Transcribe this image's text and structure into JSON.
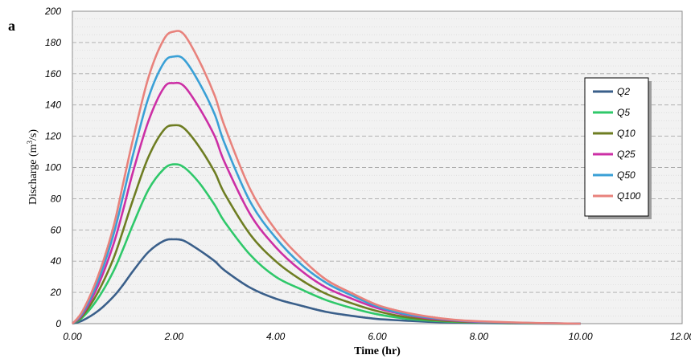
{
  "panel_label": "a",
  "chart_data": {
    "type": "line",
    "title": "",
    "xlabel": "Time (hr)",
    "ylabel_main": "Discharge (m",
    "ylabel_sup": "3",
    "ylabel_tail": "/s)",
    "xlim": [
      0,
      12
    ],
    "ylim": [
      0,
      200
    ],
    "x_ticks": [
      0,
      2,
      4,
      6,
      8,
      10,
      12
    ],
    "x_tick_labels": [
      "0.00",
      "2.00",
      "4.00",
      "6.00",
      "8.00",
      "10.00",
      "12.00"
    ],
    "y_ticks": [
      0,
      20,
      40,
      60,
      80,
      100,
      120,
      140,
      160,
      180,
      200
    ],
    "y_tick_labels": [
      "0",
      "20",
      "40",
      "60",
      "80",
      "100",
      "120",
      "140",
      "160",
      "180",
      "200"
    ],
    "grid": "horizontal dashed",
    "legend_position": "right",
    "x": [
      0,
      0.2,
      0.5,
      0.8,
      1.0,
      1.2,
      1.5,
      1.8,
      2.0,
      2.2,
      2.5,
      2.8,
      3.0,
      3.5,
      4.0,
      4.5,
      5.0,
      5.5,
      6.0,
      6.5,
      7.0,
      7.5,
      8.0,
      9.0,
      10.0
    ],
    "series": [
      {
        "name": "Q2",
        "color": "#3a5f8a",
        "values": [
          0,
          2,
          8,
          17,
          25,
          34,
          46,
          53,
          54,
          53,
          47,
          40,
          34,
          23,
          16,
          11.5,
          7.5,
          5,
          3,
          2,
          1.2,
          0.7,
          0.4,
          0.1,
          0
        ]
      },
      {
        "name": "Q5",
        "color": "#2fc86a",
        "values": [
          0,
          4,
          16,
          33,
          48,
          64,
          86,
          99,
          102,
          100,
          90,
          76,
          65,
          44,
          30,
          22,
          15,
          10,
          6,
          3.5,
          2,
          1.2,
          0.7,
          0.2,
          0
        ]
      },
      {
        "name": "Q10",
        "color": "#6e7d22",
        "values": [
          0,
          5,
          20,
          41,
          60,
          80,
          107,
          124,
          127,
          125,
          113,
          97,
          83,
          57,
          40,
          28,
          19,
          13,
          8,
          4.5,
          2.6,
          1.5,
          0.9,
          0.3,
          0
        ]
      },
      {
        "name": "Q25",
        "color": "#cc2fa5",
        "values": [
          0,
          6,
          24,
          50,
          73,
          98,
          130,
          151,
          154,
          152,
          138,
          120,
          103,
          70,
          49,
          34,
          23,
          16,
          10,
          6,
          3.5,
          2,
          1.1,
          0.4,
          0
        ]
      },
      {
        "name": "Q50",
        "color": "#3aa0d6",
        "values": [
          0,
          7,
          27,
          56,
          82,
          109,
          145,
          167,
          171,
          169,
          154,
          134,
          115,
          78,
          55,
          38,
          26,
          18,
          11,
          6.5,
          4,
          2.3,
          1.3,
          0.4,
          0
        ]
      },
      {
        "name": "Q100",
        "color": "#e8827c",
        "values": [
          0,
          8,
          30,
          61,
          90,
          119,
          158,
          182,
          187,
          185,
          168,
          146,
          126,
          86,
          60,
          42,
          28,
          19.5,
          12,
          7.5,
          4.5,
          2.5,
          1.5,
          0.5,
          0
        ]
      }
    ]
  }
}
